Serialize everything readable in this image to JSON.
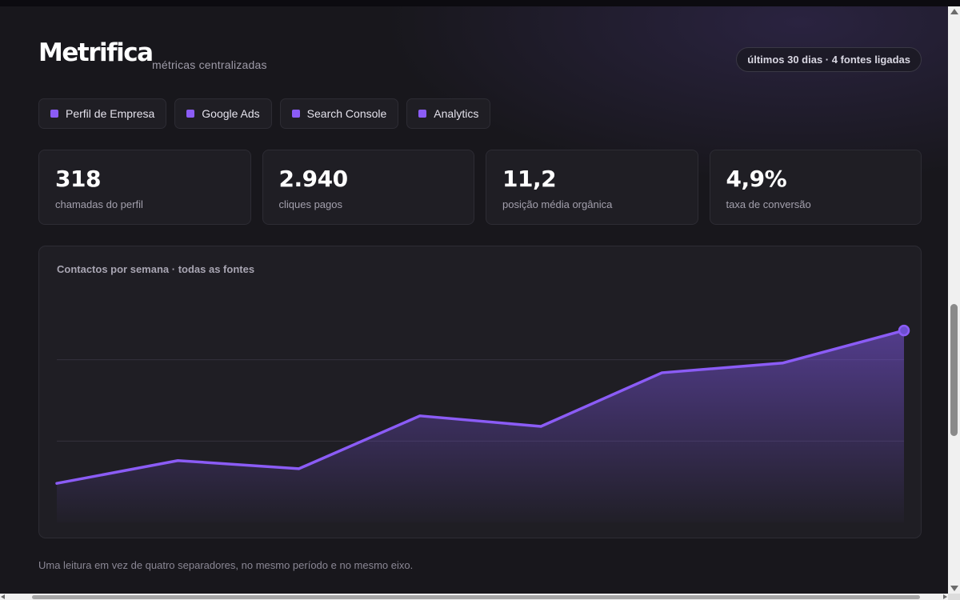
{
  "header": {
    "brand": "Metrifica",
    "subtitle": "métricas centralizadas",
    "period_pill": "últimos 30 dias · 4 fontes ligadas"
  },
  "sources": [
    {
      "label": "Perfil de Empresa",
      "icon": "square-dot-icon"
    },
    {
      "label": "Google Ads",
      "icon": "square-dot-icon"
    },
    {
      "label": "Search Console",
      "icon": "square-dot-icon"
    },
    {
      "label": "Analytics",
      "icon": "square-dot-icon"
    }
  ],
  "kpis": [
    {
      "value": "318",
      "label": "chamadas do perfil"
    },
    {
      "value": "2.940",
      "label": "cliques pagos"
    },
    {
      "value": "11,2",
      "label": "posição média orgânica"
    },
    {
      "value": "4,9%",
      "label": "taxa de conversão"
    }
  ],
  "chart": {
    "title": "Contactos por semana · todas as fontes"
  },
  "chart_data": {
    "type": "area",
    "title": "Contactos por semana · todas as fontes",
    "x": [
      1,
      2,
      3,
      4,
      5,
      6,
      7,
      8
    ],
    "series": [
      {
        "values": [
          48,
          76,
          66,
          131,
          118,
          184,
          196,
          236
        ]
      }
    ],
    "ylim": [
      0,
      300
    ],
    "grid": "horizontal",
    "legend": "none"
  },
  "footnote": "Uma leitura em vez de quatro separadores, no mesmo período e no mesmo eixo.",
  "colors": {
    "accent": "#8b5cf6",
    "background": "#18171c",
    "card": "#1f1e24",
    "border": "#2d2c34"
  }
}
